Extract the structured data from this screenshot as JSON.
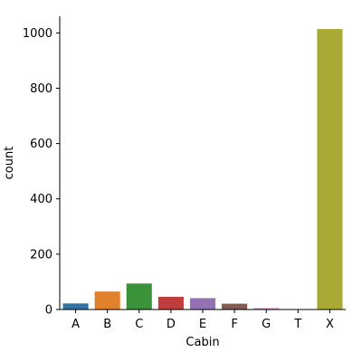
{
  "chart_data": {
    "type": "bar",
    "title": "",
    "xlabel": "Cabin",
    "ylabel": "count",
    "categories": [
      "A",
      "B",
      "C",
      "D",
      "E",
      "F",
      "G",
      "T",
      "X"
    ],
    "values": [
      22,
      65,
      94,
      46,
      41,
      21,
      5,
      1,
      1014
    ],
    "colors": [
      "#3274a1",
      "#e1812c",
      "#3a923a",
      "#c03d3e",
      "#9372b2",
      "#845b53",
      "#d684bd",
      "#7f7f7f",
      "#a9aa35"
    ],
    "ylim": [
      0,
      1060
    ],
    "yticks": [
      0,
      200,
      400,
      600,
      800,
      1000
    ],
    "grid": false
  }
}
